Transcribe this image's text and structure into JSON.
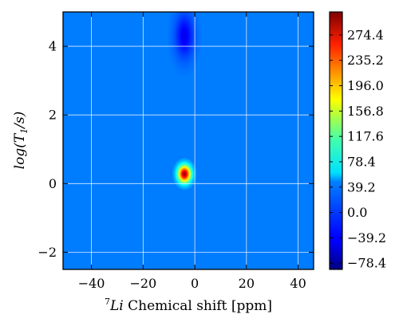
{
  "chart_data": {
    "type": "heatmap",
    "title": "",
    "xlabel_prefix": "7",
    "xlabel_italic": "Li",
    "xlabel_rest": " Chemical shift [ppm]",
    "ylabel_log": "log(T",
    "ylabel_sub": "1",
    "ylabel_tail": "/s)",
    "xlim": [
      -51,
      46
    ],
    "ylim": [
      -2.5,
      5.0
    ],
    "x_ticks": [
      -40,
      -20,
      0,
      20,
      40
    ],
    "x_tick_labels": [
      "−40",
      "−20",
      "0",
      "20",
      "40"
    ],
    "y_ticks": [
      -2,
      0,
      2,
      4
    ],
    "y_tick_labels": [
      "−2",
      "0",
      "2",
      "4"
    ],
    "grid": true,
    "colormap": "jet",
    "background_value": 10,
    "peaks": [
      {
        "x": -4,
        "y": 0.28,
        "value": 300,
        "sigma_x": 1.8,
        "sigma_y": 0.18
      },
      {
        "x": -4,
        "y": 4.3,
        "value": -45,
        "sigma_x": 2.5,
        "sigma_y": 0.45
      }
    ],
    "colorbar": {
      "min": -88,
      "max": 310,
      "ticks": [
        274.4,
        235.2,
        196.0,
        156.8,
        117.6,
        78.4,
        39.2,
        0.0,
        -39.2,
        -78.4
      ],
      "tick_labels": [
        "274.4",
        "235.2",
        "196.0",
        "156.8",
        "117.6",
        "78.4",
        "39.2",
        "0.0",
        "−39.2",
        "−78.4"
      ]
    }
  }
}
